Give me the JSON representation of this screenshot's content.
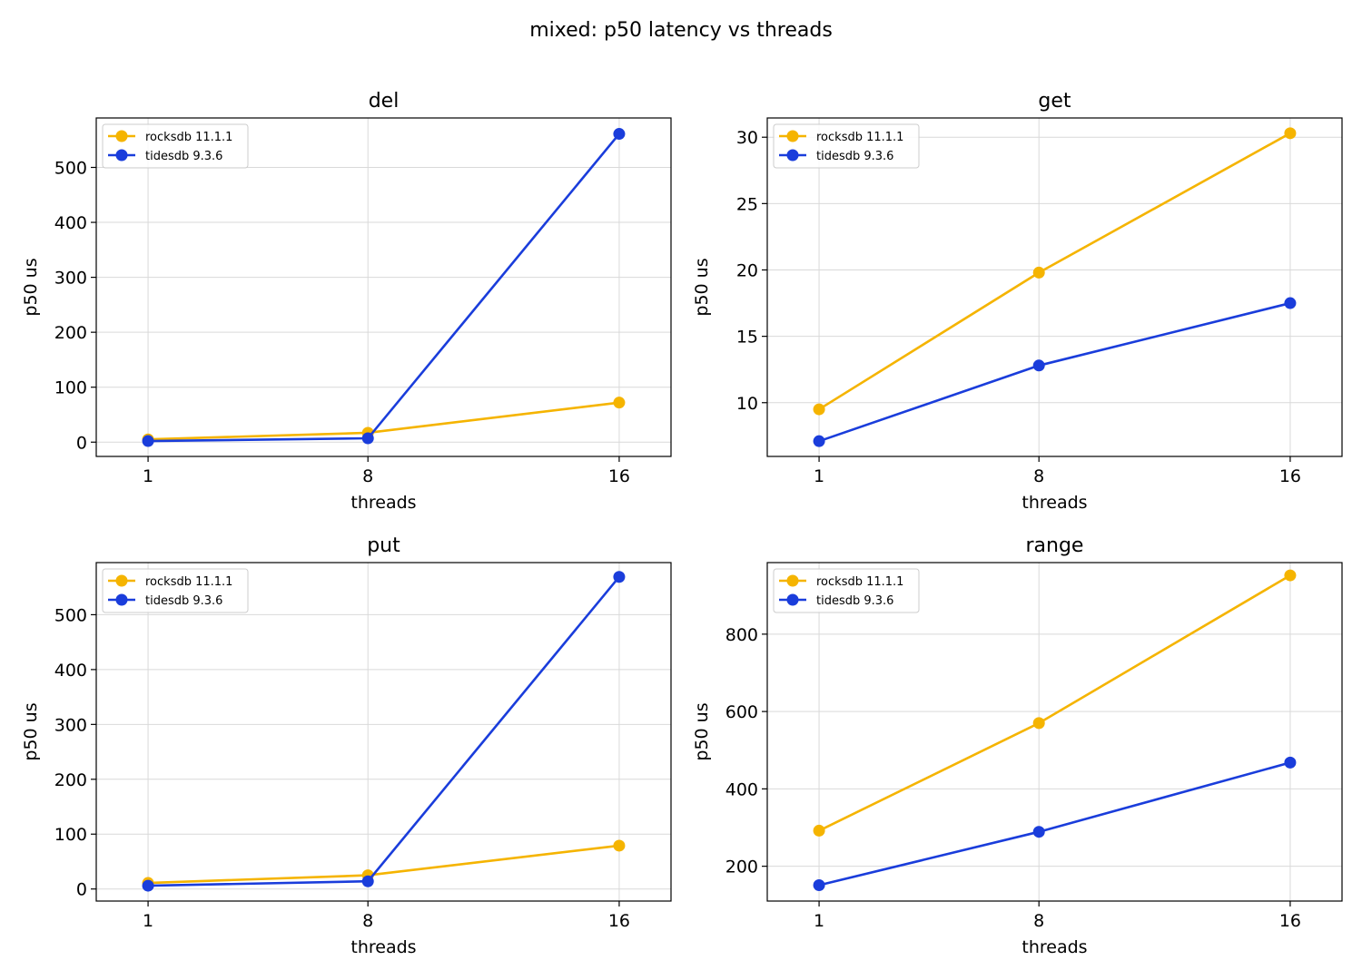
{
  "figure": {
    "title": "mixed: p50 latency vs threads"
  },
  "chart_data": [
    {
      "type": "line",
      "title": "del",
      "xlabel": "threads",
      "ylabel": "p50 us",
      "x": [
        1,
        8,
        16
      ],
      "xticks": [
        "1",
        "8",
        "16"
      ],
      "xlim": [
        -0.65,
        17.65
      ],
      "yticks": [
        0,
        100,
        200,
        300,
        400,
        500
      ],
      "ylim": [
        -26,
        590
      ],
      "grid": true,
      "legend_position": "top-left",
      "series": [
        {
          "name": "rocksdb 11.1.1",
          "color": "#f5b400",
          "values": [
            5,
            17,
            72
          ]
        },
        {
          "name": "tidesdb 9.3.6",
          "color": "#1a3ddb",
          "values": [
            2,
            7,
            561
          ]
        }
      ]
    },
    {
      "type": "line",
      "title": "get",
      "xlabel": "threads",
      "ylabel": "p50 us",
      "x": [
        1,
        8,
        16
      ],
      "xticks": [
        "1",
        "8",
        "16"
      ],
      "xlim": [
        -0.65,
        17.65
      ],
      "yticks": [
        10,
        15,
        20,
        25,
        30
      ],
      "ylim": [
        5.95,
        31.45
      ],
      "grid": true,
      "legend_position": "top-left",
      "series": [
        {
          "name": "rocksdb 11.1.1",
          "color": "#f5b400",
          "values": [
            9.5,
            19.8,
            30.3
          ]
        },
        {
          "name": "tidesdb 9.3.6",
          "color": "#1a3ddb",
          "values": [
            7.1,
            12.8,
            17.5
          ]
        }
      ]
    },
    {
      "type": "line",
      "title": "put",
      "xlabel": "threads",
      "ylabel": "p50 us",
      "x": [
        1,
        8,
        16
      ],
      "xticks": [
        "1",
        "8",
        "16"
      ],
      "xlim": [
        -0.65,
        17.65
      ],
      "yticks": [
        0,
        100,
        200,
        300,
        400,
        500
      ],
      "ylim": [
        -22,
        595
      ],
      "grid": true,
      "legend_position": "top-left",
      "series": [
        {
          "name": "rocksdb 11.1.1",
          "color": "#f5b400",
          "values": [
            11,
            25,
            79
          ]
        },
        {
          "name": "tidesdb 9.3.6",
          "color": "#1a3ddb",
          "values": [
            6,
            14,
            569
          ]
        }
      ]
    },
    {
      "type": "line",
      "title": "range",
      "xlabel": "threads",
      "ylabel": "p50 us",
      "x": [
        1,
        8,
        16
      ],
      "xticks": [
        "1",
        "8",
        "16"
      ],
      "xlim": [
        -0.65,
        17.65
      ],
      "yticks": [
        200,
        400,
        600,
        800
      ],
      "ylim": [
        110,
        985
      ],
      "grid": true,
      "legend_position": "top-left",
      "series": [
        {
          "name": "rocksdb 11.1.1",
          "color": "#f5b400",
          "values": [
            292,
            570,
            952
          ]
        },
        {
          "name": "tidesdb 9.3.6",
          "color": "#1a3ddb",
          "values": [
            151,
            289,
            468
          ]
        }
      ]
    }
  ]
}
